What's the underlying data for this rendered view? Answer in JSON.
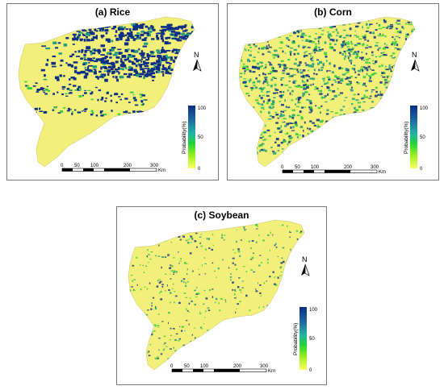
{
  "panels": [
    {
      "id": "rice",
      "title": "(a) Rice",
      "theme": "rice"
    },
    {
      "id": "corn",
      "title": "(b) Corn",
      "theme": "corn"
    },
    {
      "id": "soybean",
      "title": "(c) Soybean",
      "theme": "soybean"
    }
  ],
  "north_label": "N",
  "legend": {
    "title": "Probability(%)",
    "max_label": "100",
    "mid_label": "50",
    "min_label": "0",
    "colors": [
      "#0c2d83",
      "#1f6ea3",
      "#22b5a4",
      "#1fd33a",
      "#9ef01f",
      "#ffff66"
    ]
  },
  "scalebar": {
    "tick_labels": [
      "0",
      "50",
      "100",
      "200",
      "300"
    ],
    "unit": "Km"
  },
  "colors": {
    "land": "#f2ef7a",
    "crop_high": "#0d2f86",
    "crop_mid": "#1f9c7a",
    "crop_low": "#2ecc3d",
    "border": "#7a7a7a"
  }
}
